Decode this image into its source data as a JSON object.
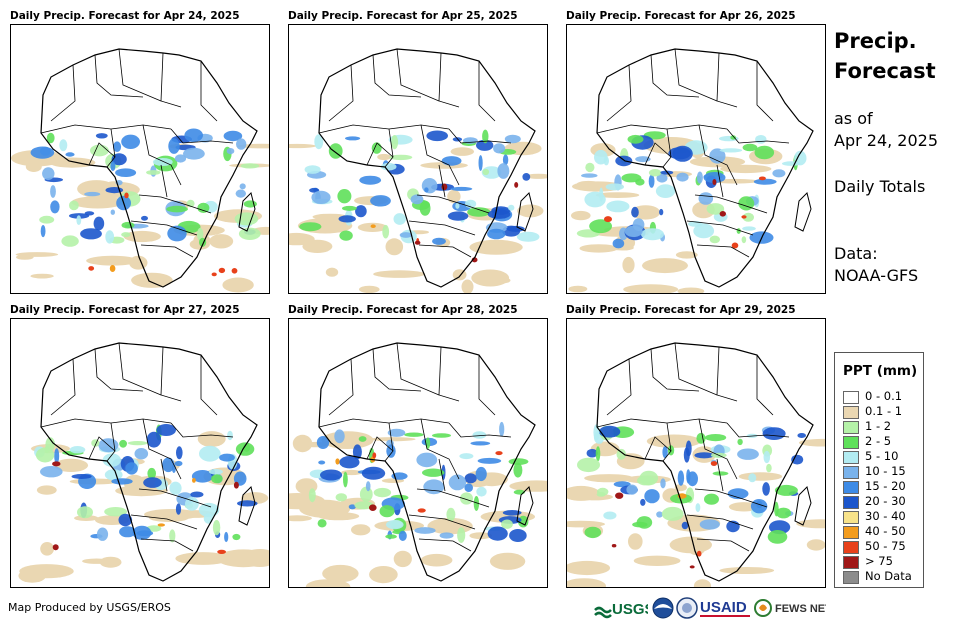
{
  "panels": [
    {
      "title": "Daily Precip. Forecast for Apr 24, 2025"
    },
    {
      "title": "Daily Precip. Forecast for Apr 25, 2025"
    },
    {
      "title": "Daily Precip. Forecast for Apr 26, 2025"
    },
    {
      "title": "Daily Precip. Forecast for Apr 27, 2025"
    },
    {
      "title": "Daily Precip. Forecast for Apr 28, 2025"
    },
    {
      "title": "Daily Precip. Forecast for Apr 29, 2025"
    }
  ],
  "side": {
    "title_line1": "Precip.",
    "title_line2": "Forecast",
    "asof_line1": "as of",
    "asof_line2": "Apr 24, 2025",
    "totals": "Daily Totals",
    "data_line1": "Data:",
    "data_line2": "NOAA-GFS"
  },
  "legend": {
    "title": "PPT (mm)",
    "items": [
      {
        "label": "0 - 0.1",
        "color": "#ffffff"
      },
      {
        "label": "0.1 - 1",
        "color": "#ead7b2"
      },
      {
        "label": "1 - 2",
        "color": "#b5f2a8"
      },
      {
        "label": "2 - 5",
        "color": "#5fe05a"
      },
      {
        "label": "5 - 10",
        "color": "#b3ecf2"
      },
      {
        "label": "10 - 15",
        "color": "#7ab3ec"
      },
      {
        "label": "15 - 20",
        "color": "#3e8be6"
      },
      {
        "label": "20 - 30",
        "color": "#1c56cc"
      },
      {
        "label": "30 - 40",
        "color": "#f8e38a"
      },
      {
        "label": "40 - 50",
        "color": "#f39c1e"
      },
      {
        "label": "50 - 75",
        "color": "#e8411b"
      },
      {
        "label": "> 75",
        "color": "#a01818"
      },
      {
        "label": "No Data",
        "color": "#8c8c8c"
      }
    ]
  },
  "credit": "Map Produced by USGS/EROS",
  "logos": {
    "usgs": "USGS",
    "usaid": "USAID",
    "fewsnet": "FEWS NET"
  }
}
